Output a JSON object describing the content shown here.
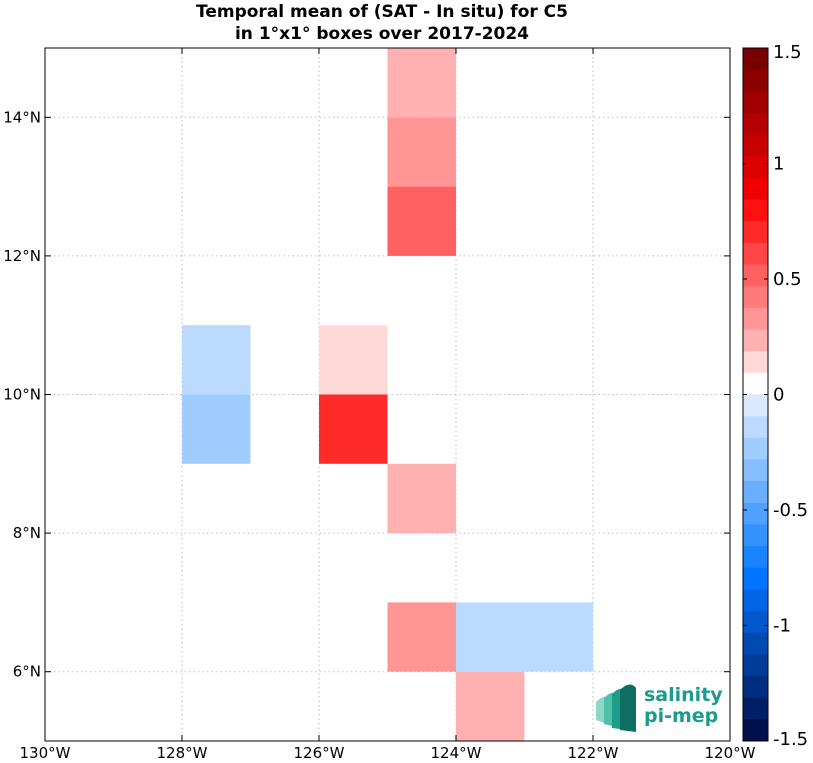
{
  "chart_data": {
    "type": "heatmap",
    "title": [
      "Temporal mean of (SAT - In situ) for C5",
      "in 1°x1° boxes over 2017-2024"
    ],
    "xlim": [
      -130,
      -120
    ],
    "ylim": [
      5,
      15
    ],
    "x_ticks": [
      {
        "value": -130,
        "label": "130°W"
      },
      {
        "value": -128,
        "label": "128°W"
      },
      {
        "value": -126,
        "label": "126°W"
      },
      {
        "value": -124,
        "label": "124°W"
      },
      {
        "value": -122,
        "label": "122°W"
      },
      {
        "value": -120,
        "label": "120°W"
      }
    ],
    "y_ticks": [
      {
        "value": 6,
        "label": "6°N"
      },
      {
        "value": 8,
        "label": "8°N"
      },
      {
        "value": 10,
        "label": "10°N"
      },
      {
        "value": 12,
        "label": "12°N"
      },
      {
        "value": 14,
        "label": "14°N"
      }
    ],
    "grid": true,
    "cells": [
      {
        "lon": -125,
        "lat": 14,
        "value": 0.25
      },
      {
        "lon": -125,
        "lat": 13,
        "value": 0.35
      },
      {
        "lon": -125,
        "lat": 12,
        "value": 0.5
      },
      {
        "lon": -128,
        "lat": 10,
        "value": -0.1
      },
      {
        "lon": -126,
        "lat": 10,
        "value": 0.15
      },
      {
        "lon": -128,
        "lat": 9,
        "value": -0.2
      },
      {
        "lon": -126,
        "lat": 9,
        "value": 0.7
      },
      {
        "lon": -125,
        "lat": 8,
        "value": 0.25
      },
      {
        "lon": -125,
        "lat": 6,
        "value": 0.35
      },
      {
        "lon": -124,
        "lat": 6,
        "value": -0.1
      },
      {
        "lon": -123,
        "lat": 6,
        "value": -0.1
      },
      {
        "lon": -124,
        "lat": 5,
        "value": 0.25
      }
    ],
    "colorbar": {
      "range": [
        -1.5,
        1.5
      ],
      "ticks": [
        {
          "value": 1.5,
          "label": "1.5"
        },
        {
          "value": 1,
          "label": "1"
        },
        {
          "value": 0.5,
          "label": "0.5"
        },
        {
          "value": 0,
          "label": "0"
        },
        {
          "value": -0.5,
          "label": "-0.5"
        },
        {
          "value": -1,
          "label": "-1"
        },
        {
          "value": -1.5,
          "label": "-1.5"
        }
      ],
      "colors_top_to_bottom": [
        "#780000",
        "#8c0000",
        "#a00000",
        "#b40000",
        "#c80000",
        "#dc0000",
        "#f00000",
        "#ff1010",
        "#ff2a2a",
        "#ff4545",
        "#ff6060",
        "#ff7a7a",
        "#ff9595",
        "#ffb0b0",
        "#ffd8d8",
        "#ffffff",
        "#d9e9ff",
        "#bcdaff",
        "#a0ccff",
        "#85bdff",
        "#6aafff",
        "#4fa0ff",
        "#3492ff",
        "#1a83ff",
        "#0075ff",
        "#0066e6",
        "#0058cc",
        "#004ab3",
        "#003b99",
        "#002d80",
        "#001f66",
        "#00104d"
      ]
    },
    "logo": {
      "line1": "salinity",
      "line2": "pi-mep",
      "color": "#1a9c8c"
    }
  }
}
